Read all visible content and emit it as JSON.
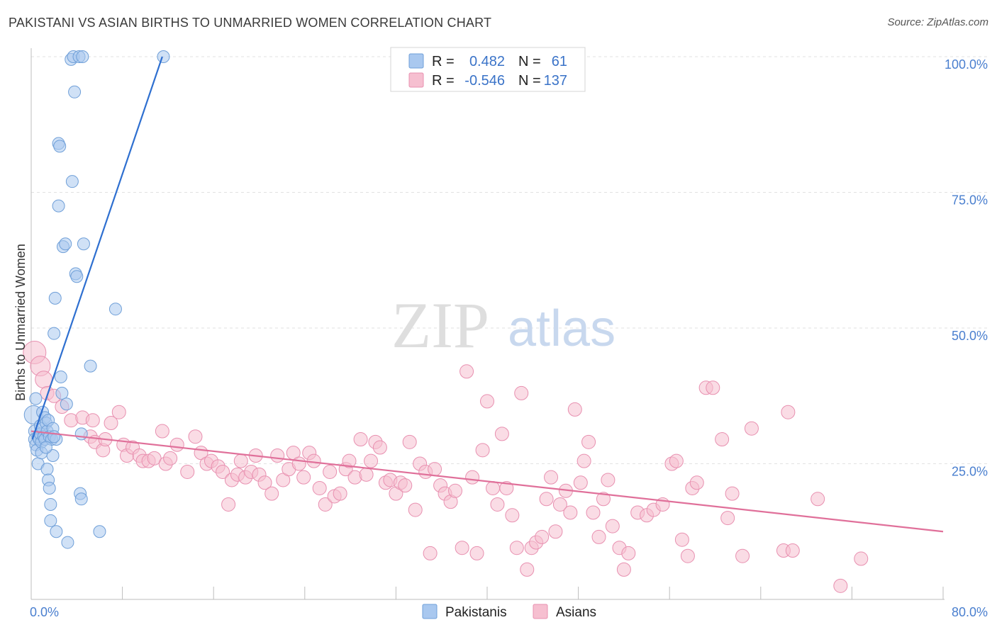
{
  "title": "PAKISTANI VS ASIAN BIRTHS TO UNMARRIED WOMEN CORRELATION CHART",
  "source": "Source: ZipAtlas.com",
  "watermark": {
    "zip": "ZIP",
    "atlas": "atlas"
  },
  "colors": {
    "pakistani_fill": "#a9c8ef",
    "pakistani_stroke": "#6f9fd8",
    "pakistani_line": "#2e6fd0",
    "asian_fill": "#f6bfd0",
    "asian_stroke": "#e890b0",
    "asian_line": "#e0709a",
    "grid": "#e2e2e2",
    "axis_text": "#4a7fcf"
  },
  "legend": {
    "rows": [
      {
        "r_label": "R =",
        "r_value": "0.482",
        "n_label": "N =",
        "n_value": "61"
      },
      {
        "r_label": "R =",
        "r_value": "-0.546",
        "n_label": "N =",
        "n_value": "137"
      }
    ]
  },
  "bottom_legend": [
    "Pakistanis",
    "Asians"
  ],
  "chart_data": {
    "type": "scatter",
    "title": "PAKISTANI VS ASIAN BIRTHS TO UNMARRIED WOMEN CORRELATION CHART",
    "xlabel": "",
    "ylabel": "Births to Unmarried Women",
    "xlim": [
      0,
      80
    ],
    "ylim": [
      0,
      102
    ],
    "x_tick_labels": [
      "0.0%",
      "80.0%"
    ],
    "y_ticks": [
      25,
      50,
      75,
      100
    ],
    "y_tick_labels": [
      "25.0%",
      "50.0%",
      "75.0%",
      "100.0%"
    ],
    "grid": true,
    "legend_position": "top-center",
    "series": [
      {
        "name": "Pakistanis",
        "r": 0.482,
        "n": 61,
        "trend": {
          "x": [
            0.1,
            11.5
          ],
          "y": [
            29.5,
            100
          ]
        },
        "points": [
          [
            0.2,
            34
          ],
          [
            0.3,
            31
          ],
          [
            0.3,
            29.5
          ],
          [
            0.4,
            28.5
          ],
          [
            0.5,
            27.5
          ],
          [
            0.6,
            30
          ],
          [
            0.6,
            25
          ],
          [
            0.7,
            29.5
          ],
          [
            0.8,
            32
          ],
          [
            0.8,
            30.5
          ],
          [
            0.9,
            29
          ],
          [
            1.0,
            34.5
          ],
          [
            1.0,
            31.5
          ],
          [
            1.1,
            30
          ],
          [
            1.2,
            33.5
          ],
          [
            1.2,
            29.5
          ],
          [
            1.3,
            32.5
          ],
          [
            1.4,
            31
          ],
          [
            1.4,
            24
          ],
          [
            1.5,
            33
          ],
          [
            1.5,
            22
          ],
          [
            1.6,
            20.5
          ],
          [
            1.6,
            30
          ],
          [
            1.7,
            17.5
          ],
          [
            1.7,
            14.5
          ],
          [
            1.8,
            29.5
          ],
          [
            1.9,
            31.5
          ],
          [
            1.9,
            26.5
          ],
          [
            2.0,
            49
          ],
          [
            2.1,
            55.5
          ],
          [
            2.2,
            29.5
          ],
          [
            2.2,
            12.5
          ],
          [
            2.4,
            72.5
          ],
          [
            2.4,
            84
          ],
          [
            2.5,
            83.5
          ],
          [
            2.6,
            41
          ],
          [
            2.7,
            38
          ],
          [
            2.8,
            65
          ],
          [
            3.0,
            65.5
          ],
          [
            3.2,
            10.5
          ],
          [
            3.5,
            99.5
          ],
          [
            3.6,
            77
          ],
          [
            3.7,
            100
          ],
          [
            3.8,
            93.5
          ],
          [
            3.9,
            60
          ],
          [
            4.0,
            59.5
          ],
          [
            4.2,
            100
          ],
          [
            4.3,
            19.5
          ],
          [
            4.4,
            18.5
          ],
          [
            4.4,
            30.5
          ],
          [
            4.5,
            100
          ],
          [
            4.6,
            65.5
          ],
          [
            5.2,
            43
          ],
          [
            6.0,
            12.5
          ],
          [
            7.4,
            53.5
          ],
          [
            11.6,
            100
          ],
          [
            0.4,
            37
          ],
          [
            0.9,
            27
          ],
          [
            1.3,
            28
          ],
          [
            2.0,
            30
          ],
          [
            3.1,
            36
          ]
        ]
      },
      {
        "name": "Asians",
        "r": -0.546,
        "n": 137,
        "trend": {
          "x": [
            0,
            80
          ],
          "y": [
            31,
            12.5
          ]
        },
        "points": [
          [
            0.3,
            45.5
          ],
          [
            0.8,
            43
          ],
          [
            1.1,
            40.5
          ],
          [
            1.4,
            38
          ],
          [
            2.0,
            37.5
          ],
          [
            2.7,
            35.5
          ],
          [
            3.5,
            33
          ],
          [
            4.5,
            33.5
          ],
          [
            5.2,
            30
          ],
          [
            5.4,
            33
          ],
          [
            5.6,
            29
          ],
          [
            6.3,
            27.5
          ],
          [
            6.5,
            29.5
          ],
          [
            7.0,
            32.5
          ],
          [
            7.7,
            34.5
          ],
          [
            8.1,
            28.5
          ],
          [
            8.4,
            26.5
          ],
          [
            8.9,
            28
          ],
          [
            9.5,
            26.5
          ],
          [
            9.8,
            25.5
          ],
          [
            10.3,
            25.5
          ],
          [
            10.8,
            26
          ],
          [
            11.5,
            31
          ],
          [
            11.8,
            25
          ],
          [
            12.2,
            26
          ],
          [
            12.8,
            28.5
          ],
          [
            13.7,
            23.5
          ],
          [
            14.4,
            30
          ],
          [
            14.9,
            27
          ],
          [
            15.4,
            25
          ],
          [
            15.8,
            25.5
          ],
          [
            16.4,
            24.5
          ],
          [
            16.8,
            23.5
          ],
          [
            17.3,
            17.5
          ],
          [
            17.6,
            22
          ],
          [
            18.1,
            23
          ],
          [
            18.4,
            25.5
          ],
          [
            18.8,
            22.5
          ],
          [
            19.3,
            23.5
          ],
          [
            19.7,
            26.5
          ],
          [
            20.0,
            23
          ],
          [
            20.5,
            21.5
          ],
          [
            21.1,
            19.5
          ],
          [
            21.6,
            26.5
          ],
          [
            22.1,
            22
          ],
          [
            22.6,
            24
          ],
          [
            23.0,
            27
          ],
          [
            23.5,
            25
          ],
          [
            23.9,
            22.5
          ],
          [
            24.4,
            27
          ],
          [
            24.8,
            25.5
          ],
          [
            25.3,
            20.5
          ],
          [
            25.8,
            17.5
          ],
          [
            26.2,
            23.5
          ],
          [
            26.6,
            19
          ],
          [
            27.1,
            19.5
          ],
          [
            27.6,
            24
          ],
          [
            27.9,
            25.5
          ],
          [
            28.4,
            22.5
          ],
          [
            28.9,
            29.5
          ],
          [
            29.4,
            23
          ],
          [
            29.8,
            25.5
          ],
          [
            30.2,
            29
          ],
          [
            30.6,
            28
          ],
          [
            31.1,
            21.5
          ],
          [
            31.5,
            22
          ],
          [
            32.0,
            19.5
          ],
          [
            32.4,
            21.5
          ],
          [
            32.8,
            21
          ],
          [
            33.2,
            29
          ],
          [
            33.7,
            16.5
          ],
          [
            34.1,
            25
          ],
          [
            34.6,
            23.5
          ],
          [
            35.0,
            8.5
          ],
          [
            35.4,
            24
          ],
          [
            35.9,
            21
          ],
          [
            36.3,
            19.5
          ],
          [
            36.8,
            18
          ],
          [
            37.2,
            20
          ],
          [
            37.8,
            9.5
          ],
          [
            38.2,
            42
          ],
          [
            38.7,
            22.5
          ],
          [
            39.1,
            8.5
          ],
          [
            39.6,
            27.5
          ],
          [
            40.0,
            36.5
          ],
          [
            40.5,
            20.5
          ],
          [
            40.9,
            17.5
          ],
          [
            41.3,
            30.5
          ],
          [
            41.7,
            20.5
          ],
          [
            42.2,
            15.5
          ],
          [
            42.6,
            9.5
          ],
          [
            43.0,
            38
          ],
          [
            43.5,
            5.5
          ],
          [
            43.9,
            9.5
          ],
          [
            44.3,
            10.5
          ],
          [
            44.8,
            11.5
          ],
          [
            45.2,
            18.5
          ],
          [
            45.6,
            22.5
          ],
          [
            46.0,
            12.5
          ],
          [
            46.4,
            17.5
          ],
          [
            46.9,
            20
          ],
          [
            47.3,
            16
          ],
          [
            47.7,
            35
          ],
          [
            48.2,
            21.5
          ],
          [
            48.5,
            25.5
          ],
          [
            48.9,
            29
          ],
          [
            49.3,
            16
          ],
          [
            49.8,
            11.5
          ],
          [
            50.2,
            18.5
          ],
          [
            50.6,
            22
          ],
          [
            51.0,
            13.5
          ],
          [
            51.6,
            9.5
          ],
          [
            52.0,
            5.5
          ],
          [
            52.4,
            8.5
          ],
          [
            53.2,
            16
          ],
          [
            54.0,
            15.5
          ],
          [
            54.6,
            16.5
          ],
          [
            55.4,
            17.5
          ],
          [
            56.2,
            25
          ],
          [
            56.6,
            25.5
          ],
          [
            57.1,
            11
          ],
          [
            57.6,
            8
          ],
          [
            58.0,
            20.5
          ],
          [
            58.4,
            21.5
          ],
          [
            59.2,
            39
          ],
          [
            59.8,
            39
          ],
          [
            60.6,
            29.5
          ],
          [
            61.1,
            15
          ],
          [
            61.5,
            19.5
          ],
          [
            62.4,
            8
          ],
          [
            63.2,
            31.5
          ],
          [
            66.0,
            9
          ],
          [
            66.4,
            34.5
          ],
          [
            66.8,
            9
          ],
          [
            69.0,
            18.5
          ],
          [
            71.0,
            2.5
          ],
          [
            72.8,
            7.5
          ]
        ]
      }
    ]
  }
}
